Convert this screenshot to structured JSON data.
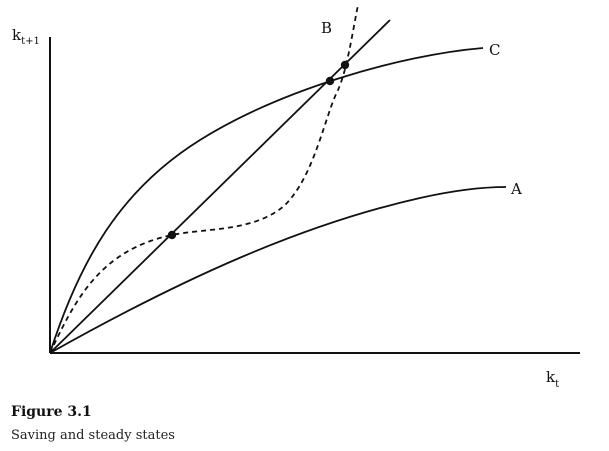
{
  "axes": {
    "y_label": "k",
    "y_subscript": "t+1",
    "x_label": "k",
    "x_subscript": "t"
  },
  "curves": {
    "a_label": "A",
    "b_label": "B",
    "c_label": "C"
  },
  "caption": {
    "title": "Figure 3.1",
    "text": "Saving and steady states"
  },
  "colors": {
    "ink": "#111111"
  }
}
